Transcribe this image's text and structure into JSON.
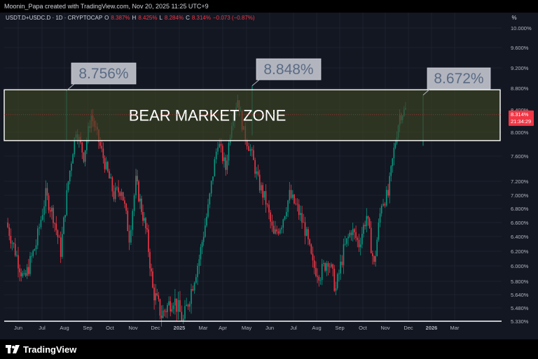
{
  "header": {
    "attribution": "Moonin_Papa created with TradingView.com, Nov 20, 2025 11:25 UTC+9"
  },
  "legend": {
    "symbol": "USDT.D+USDC.D · 1D · CRYPTOCAP",
    "open_label": "O",
    "open": "8.387%",
    "high_label": "H",
    "high": "8.425%",
    "low_label": "L",
    "low": "8.284%",
    "close_label": "C",
    "close": "8.314%",
    "change": "−0.073 (−0.87%)"
  },
  "scale_button": "%",
  "price_tag": {
    "value": "8.314%",
    "countdown": "21:34:29"
  },
  "footer": {
    "brand": "TradingView"
  },
  "colors": {
    "up": "#089981",
    "down": "#f23645",
    "zone_fill": "#3d4423",
    "zone_border": "#ffffff",
    "callout_bg": "#b2b5be",
    "callout_text": "#5b6b85"
  },
  "chart_data": {
    "type": "candlestick",
    "yaxis_labels": [
      "10.000%",
      "9.600%",
      "9.200%",
      "8.800%",
      "8.400%",
      "8.000%",
      "7.600%",
      "7.200%",
      "7.000%",
      "6.800%",
      "6.600%",
      "6.400%",
      "6.200%",
      "6.000%",
      "5.800%",
      "5.640%",
      "5.480%",
      "5.330%"
    ],
    "xaxis_labels": [
      "Jun",
      "Jul",
      "Aug",
      "Sep",
      "Oct",
      "Nov",
      "Dec",
      "2025",
      "Mar",
      "Apr",
      "May",
      "Jun",
      "Jul",
      "Aug",
      "Sep",
      "Oct",
      "Nov",
      "Dec",
      "2026",
      "Mar"
    ],
    "zone": {
      "label": "BEAR MARKET ZONE",
      "top": 8.77,
      "bottom": 7.86
    },
    "annotations": [
      {
        "text": "8.756%",
        "month": "Aug",
        "value": 8.756
      },
      {
        "text": "8.848%",
        "month": "Apr",
        "value": 8.848
      },
      {
        "text": "8.672%",
        "month": "Nov",
        "value": 8.672
      }
    ],
    "last_price": 8.314,
    "series_path": [
      [
        "May",
        6.6
      ],
      [
        "Jun",
        5.8
      ],
      [
        "Jun",
        6.3
      ],
      [
        "Jul",
        7.0
      ],
      [
        "Jul",
        6.7
      ],
      [
        "Jul",
        6.2
      ],
      [
        "Aug",
        7.2
      ],
      [
        "Aug",
        8.05
      ],
      [
        "Aug",
        7.6
      ],
      [
        "Sep",
        8.3
      ],
      [
        "Sep",
        7.85
      ],
      [
        "Sep",
        7.4
      ],
      [
        "Oct",
        7.0
      ],
      [
        "Oct",
        7.1
      ],
      [
        "Oct",
        6.4
      ],
      [
        "Nov",
        7.2
      ],
      [
        "Nov",
        6.8
      ],
      [
        "Nov",
        6.4
      ],
      [
        "Nov",
        5.7
      ],
      [
        "Dec",
        5.4
      ],
      [
        "Dec",
        5.6
      ],
      [
        "2025",
        5.33
      ],
      [
        "2025",
        5.7
      ],
      [
        "2025",
        6.1
      ],
      [
        "Mar",
        6.8
      ],
      [
        "Mar",
        7.85
      ],
      [
        "Apr",
        7.4
      ],
      [
        "Apr",
        8.2
      ],
      [
        "Apr",
        8.6
      ],
      [
        "Apr",
        8.0
      ],
      [
        "May",
        7.7
      ],
      [
        "May",
        7.2
      ],
      [
        "May",
        6.9
      ],
      [
        "Jun",
        6.4
      ],
      [
        "Jun",
        6.6
      ],
      [
        "Jun",
        7.0
      ],
      [
        "Jul",
        6.8
      ],
      [
        "Jul",
        6.5
      ],
      [
        "Jul",
        6.0
      ],
      [
        "Aug",
        5.9
      ],
      [
        "Aug",
        6.1
      ],
      [
        "Aug",
        5.7
      ],
      [
        "Sep",
        6.2
      ],
      [
        "Sep",
        6.5
      ],
      [
        "Sep",
        6.3
      ],
      [
        "Oct",
        6.7
      ],
      [
        "Oct",
        6.0
      ],
      [
        "Oct",
        6.9
      ],
      [
        "Nov",
        7.0
      ],
      [
        "Nov",
        7.7
      ],
      [
        "Nov",
        8.3
      ],
      [
        "Nov",
        8.4
      ]
    ]
  }
}
